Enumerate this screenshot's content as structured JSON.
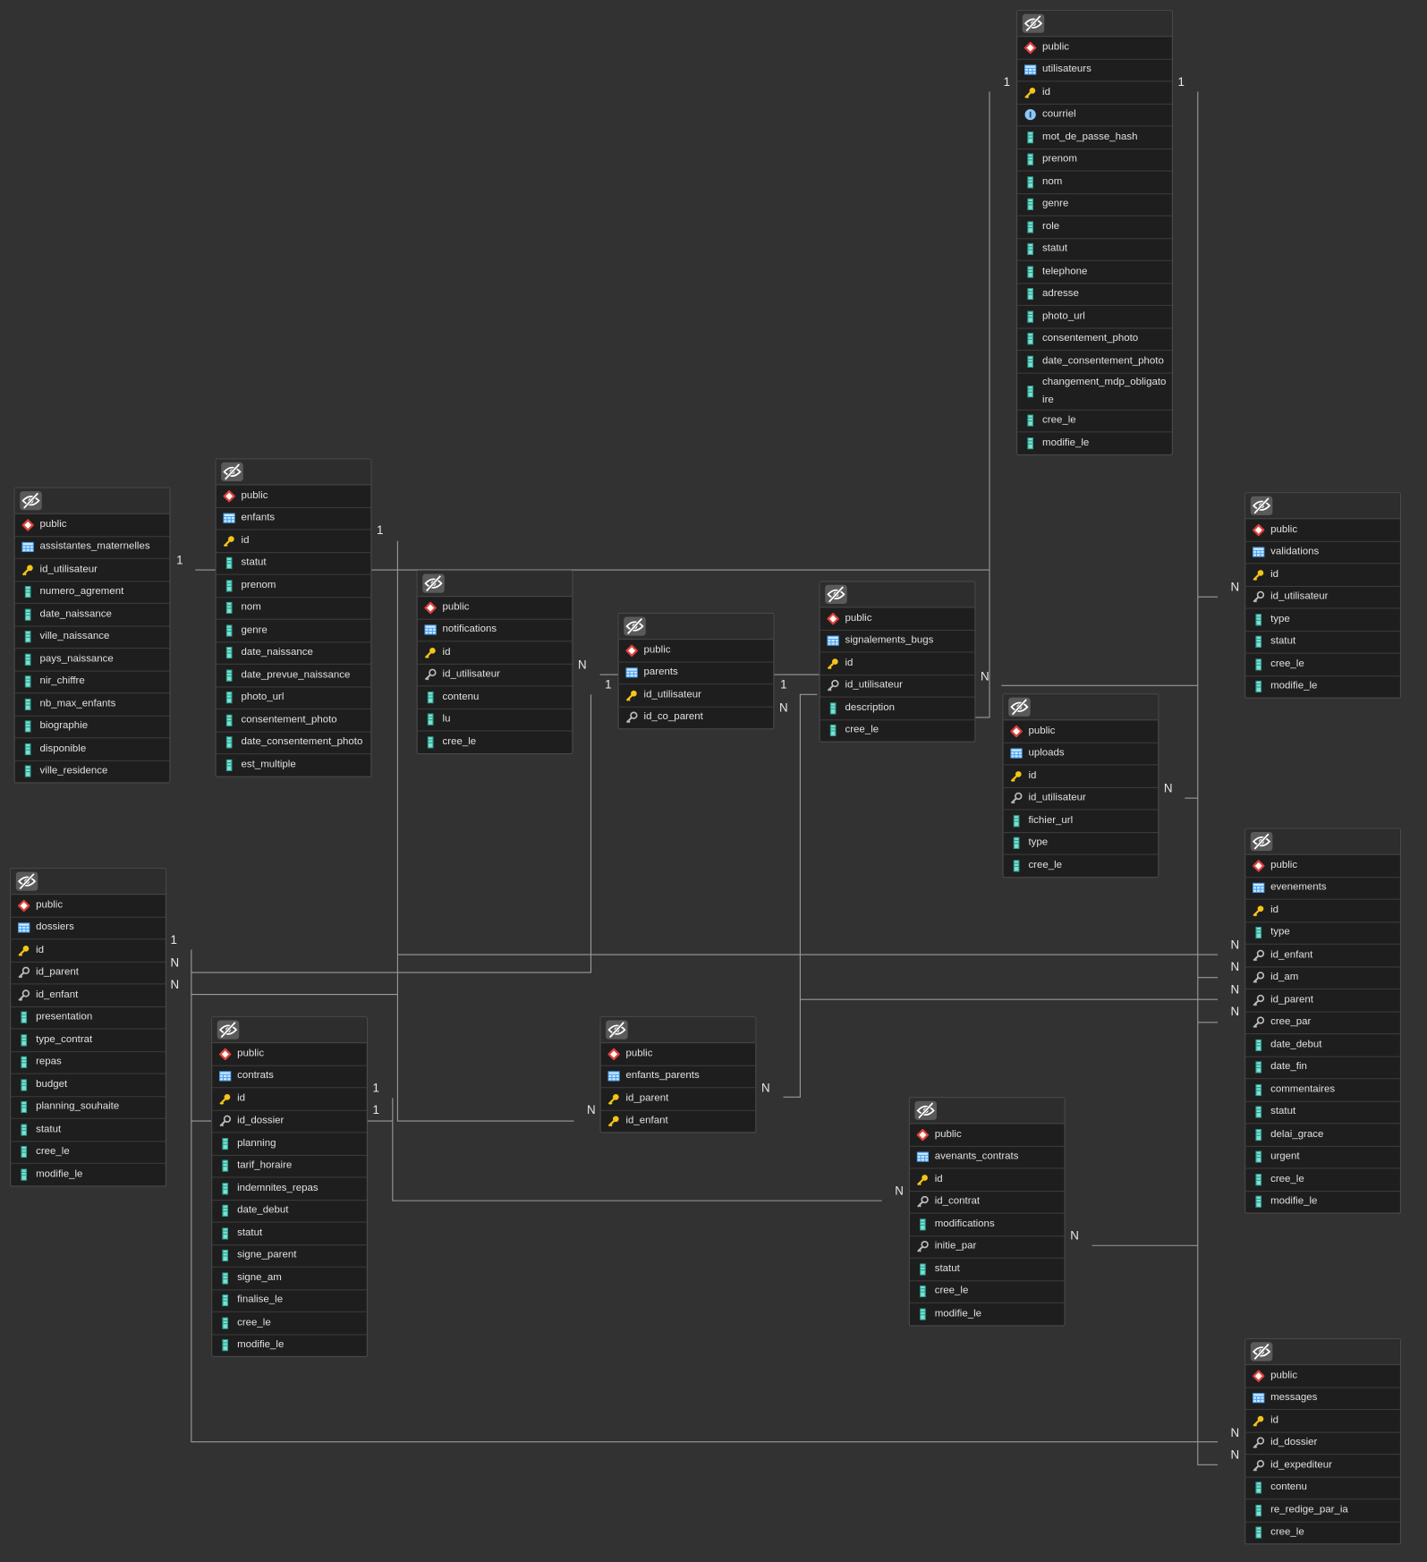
{
  "tables": [
    {
      "schema": "public",
      "name": "utilisateurs",
      "columns": [
        "id",
        "courriel",
        "mot_de_passe_hash",
        "prenom",
        "nom",
        "genre",
        "role",
        "statut",
        "telephone",
        "adresse",
        "photo_url",
        "consentement_photo",
        "date_consentement_photo",
        "changement_mdp_obligatoire",
        "cree_le",
        "modifie_le"
      ]
    },
    {
      "schema": "public",
      "name": "assistantes_maternelles",
      "columns": [
        "id_utilisateur",
        "numero_agrement",
        "date_naissance",
        "ville_naissance",
        "pays_naissance",
        "nir_chiffre",
        "nb_max_enfants",
        "biographie",
        "disponible",
        "ville_residence"
      ]
    },
    {
      "schema": "public",
      "name": "enfants",
      "columns": [
        "id",
        "statut",
        "prenom",
        "nom",
        "genre",
        "date_naissance",
        "date_prevue_naissance",
        "photo_url",
        "consentement_photo",
        "date_consentement_photo",
        "est_multiple"
      ]
    },
    {
      "schema": "public",
      "name": "notifications",
      "columns": [
        "id",
        "id_utilisateur",
        "contenu",
        "lu",
        "cree_le"
      ]
    },
    {
      "schema": "public",
      "name": "parents",
      "columns": [
        "id_utilisateur",
        "id_co_parent"
      ]
    },
    {
      "schema": "public",
      "name": "signalements_bugs",
      "columns": [
        "id",
        "id_utilisateur",
        "description",
        "cree_le"
      ]
    },
    {
      "schema": "public",
      "name": "uploads",
      "columns": [
        "id",
        "id_utilisateur",
        "fichier_url",
        "type",
        "cree_le"
      ]
    },
    {
      "schema": "public",
      "name": "validations",
      "columns": [
        "id",
        "id_utilisateur",
        "type",
        "statut",
        "cree_le",
        "modifie_le"
      ]
    },
    {
      "schema": "public",
      "name": "evenements",
      "columns": [
        "id",
        "type",
        "id_enfant",
        "id_am",
        "id_parent",
        "cree_par",
        "date_debut",
        "date_fin",
        "commentaires",
        "statut",
        "delai_grace",
        "urgent",
        "cree_le",
        "modifie_le"
      ]
    },
    {
      "schema": "public",
      "name": "dossiers",
      "columns": [
        "id",
        "id_parent",
        "id_enfant",
        "presentation",
        "type_contrat",
        "repas",
        "budget",
        "planning_souhaite",
        "statut",
        "cree_le",
        "modifie_le"
      ]
    },
    {
      "schema": "public",
      "name": "contrats",
      "columns": [
        "id",
        "id_dossier",
        "planning",
        "tarif_horaire",
        "indemnites_repas",
        "date_debut",
        "statut",
        "signe_parent",
        "signe_am",
        "finalise_le",
        "cree_le",
        "modifie_le"
      ]
    },
    {
      "schema": "public",
      "name": "enfants_parents",
      "columns": [
        "id_parent",
        "id_enfant"
      ]
    },
    {
      "schema": "public",
      "name": "avenants_contrats",
      "columns": [
        "id",
        "id_contrat",
        "modifications",
        "initie_par",
        "statut",
        "cree_le",
        "modifie_le"
      ]
    },
    {
      "schema": "public",
      "name": "messages",
      "columns": [
        "id",
        "id_dossier",
        "id_expediteur",
        "contenu",
        "re_redige_par_ia",
        "cree_le"
      ]
    }
  ],
  "cardinalities": [
    "1",
    "1",
    "1",
    "1",
    "N",
    "1",
    "1",
    "N",
    "N",
    "N",
    "N",
    "1",
    "N",
    "N",
    "N",
    "N",
    "N",
    "N",
    "1",
    "1",
    "N",
    "N",
    "N",
    "N",
    "N",
    "N"
  ]
}
